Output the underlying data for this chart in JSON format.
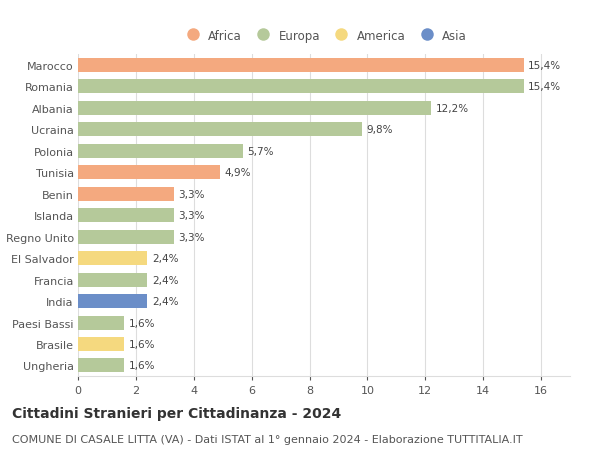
{
  "countries": [
    "Marocco",
    "Romania",
    "Albania",
    "Ucraina",
    "Polonia",
    "Tunisia",
    "Benin",
    "Islanda",
    "Regno Unito",
    "El Salvador",
    "Francia",
    "India",
    "Paesi Bassi",
    "Brasile",
    "Ungheria"
  ],
  "values": [
    15.4,
    15.4,
    12.2,
    9.8,
    5.7,
    4.9,
    3.3,
    3.3,
    3.3,
    2.4,
    2.4,
    2.4,
    1.6,
    1.6,
    1.6
  ],
  "labels": [
    "15,4%",
    "15,4%",
    "12,2%",
    "9,8%",
    "5,7%",
    "4,9%",
    "3,3%",
    "3,3%",
    "3,3%",
    "2,4%",
    "2,4%",
    "2,4%",
    "1,6%",
    "1,6%",
    "1,6%"
  ],
  "continents": [
    "Africa",
    "Europa",
    "Europa",
    "Europa",
    "Europa",
    "Africa",
    "Africa",
    "Europa",
    "Europa",
    "America",
    "Europa",
    "Asia",
    "Europa",
    "America",
    "Europa"
  ],
  "continent_colors": {
    "Africa": "#F4A97F",
    "Europa": "#B5C99A",
    "America": "#F5D97F",
    "Asia": "#6B8EC8"
  },
  "legend_order": [
    "Africa",
    "Europa",
    "America",
    "Asia"
  ],
  "xlim": [
    0,
    17
  ],
  "xticks": [
    0,
    2,
    4,
    6,
    8,
    10,
    12,
    14,
    16
  ],
  "title": "Cittadini Stranieri per Cittadinanza - 2024",
  "subtitle": "COMUNE DI CASALE LITTA (VA) - Dati ISTAT al 1° gennaio 2024 - Elaborazione TUTTITALIA.IT",
  "title_fontsize": 10,
  "subtitle_fontsize": 8,
  "label_fontsize": 7.5,
  "tick_fontsize": 8,
  "legend_fontsize": 8.5,
  "bg_color": "#FFFFFF",
  "grid_color": "#DDDDDD",
  "bar_height": 0.65
}
